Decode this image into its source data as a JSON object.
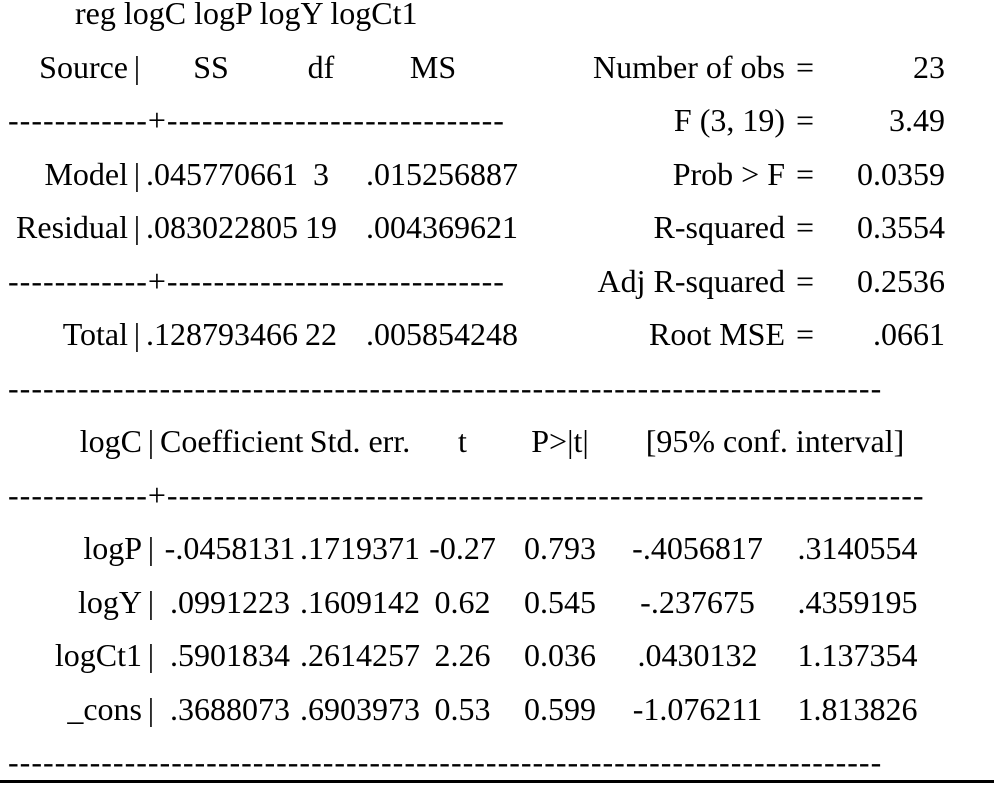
{
  "command": "reg logC logP logY logCt1",
  "glyphs": {
    "pipe": "|"
  },
  "separators": {
    "anova": "------------+-----------------------------",
    "coef": "------------+-----------------------------------------------------------------",
    "full": "---------------------------------------------------------------------------"
  },
  "anova": {
    "header": {
      "source": "Source",
      "ss": "SS",
      "df": "df",
      "ms": "MS"
    },
    "rows": [
      {
        "label": "Model",
        "ss": ".045770661",
        "df": "3",
        "ms": ".015256887"
      },
      {
        "label": "Residual",
        "ss": ".083022805",
        "df": "19",
        "ms": ".004369621"
      },
      {
        "label": "Total",
        "ss": ".128793466",
        "df": "22",
        "ms": ".005854248"
      }
    ]
  },
  "stats": [
    {
      "label": "Number of obs",
      "eq": "=",
      "value": "23"
    },
    {
      "label": "F (3, 19)",
      "eq": "=",
      "value": "3.49"
    },
    {
      "label": "Prob > F",
      "eq": "=",
      "value": "0.0359"
    },
    {
      "label": "R-squared",
      "eq": "=",
      "value": "0.3554"
    },
    {
      "label": "Adj R-squared",
      "eq": "=",
      "value": "0.2536"
    },
    {
      "label": "Root MSE",
      "eq": "=",
      "value": ".0661"
    }
  ],
  "coef": {
    "header": {
      "depvar": "logC",
      "coef": "Coefficient",
      "stderr": "Std. err.",
      "t": "t",
      "p": "P>|t|",
      "ci": "[95% conf. interval]"
    },
    "rows": [
      {
        "var": "logP",
        "coef": "-.0458131",
        "stderr": ".1719371",
        "t": "-0.27",
        "p": "0.793",
        "lo": "-.4056817",
        "hi": ".3140554"
      },
      {
        "var": "logY",
        "coef": ".0991223",
        "stderr": ".1609142",
        "t": "0.62",
        "p": "0.545",
        "lo": "-.237675",
        "hi": ".4359195"
      },
      {
        "var": "logCt1",
        "coef": ".5901834",
        "stderr": ".2614257",
        "t": "2.26",
        "p": "0.036",
        "lo": ".0430132",
        "hi": "1.137354"
      },
      {
        "var": "_cons",
        "coef": ".3688073",
        "stderr": ".6903973",
        "t": "0.53",
        "p": "0.599",
        "lo": "-1.076211",
        "hi": "1.813826"
      }
    ]
  }
}
